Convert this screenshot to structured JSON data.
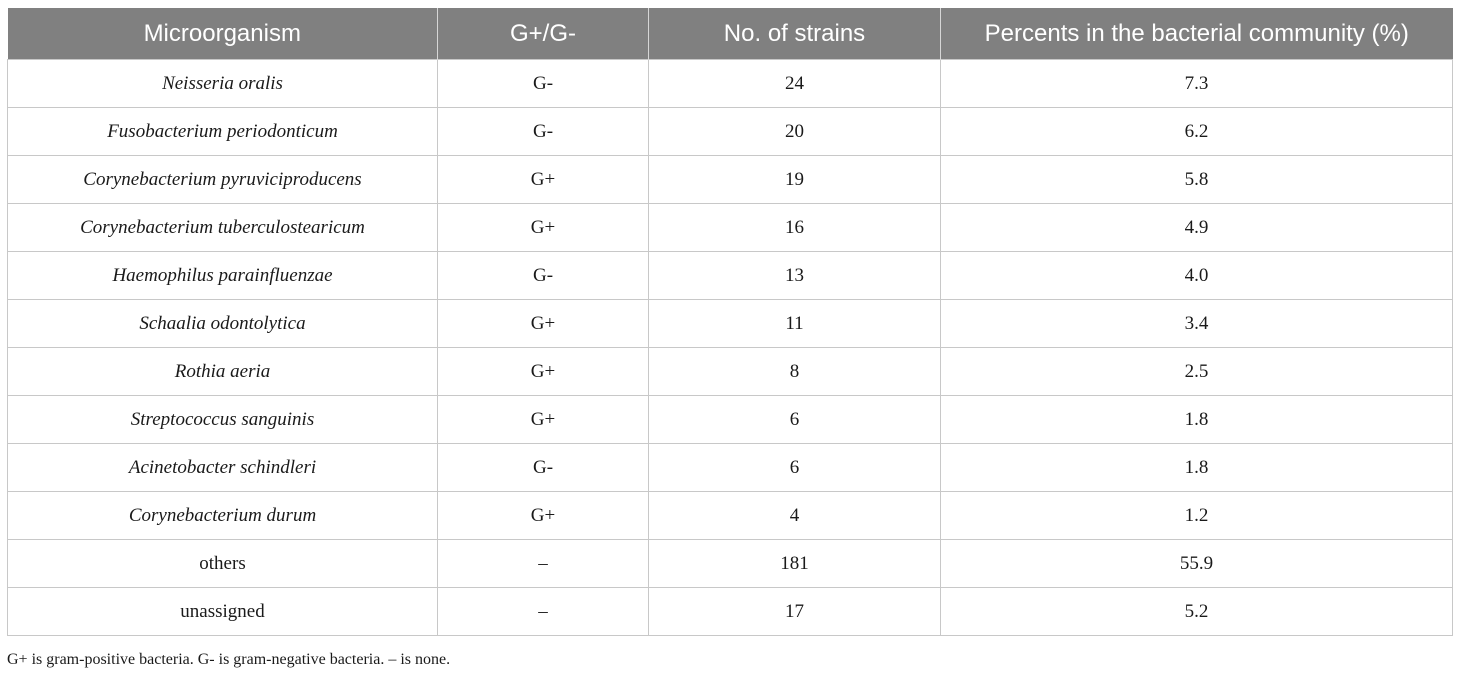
{
  "table": {
    "headers": [
      "Microorganism",
      "G+/G-",
      "No. of strains",
      "Percents in the bacterial community (%)"
    ],
    "rows": [
      {
        "name": "Neisseria oralis",
        "gram": "G-",
        "strains": "24",
        "percent": "7.3",
        "italic": true
      },
      {
        "name": "Fusobacterium periodonticum",
        "gram": "G-",
        "strains": "20",
        "percent": "6.2",
        "italic": true
      },
      {
        "name": "Corynebacterium pyruviciproducens",
        "gram": "G+",
        "strains": "19",
        "percent": "5.8",
        "italic": true
      },
      {
        "name": "Corynebacterium tuberculostearicum",
        "gram": "G+",
        "strains": "16",
        "percent": "4.9",
        "italic": true
      },
      {
        "name": "Haemophilus parainfluenzae",
        "gram": "G-",
        "strains": "13",
        "percent": "4.0",
        "italic": true
      },
      {
        "name": "Schaalia odontolytica",
        "gram": "G+",
        "strains": "11",
        "percent": "3.4",
        "italic": true
      },
      {
        "name": "Rothia aeria",
        "gram": "G+",
        "strains": "8",
        "percent": "2.5",
        "italic": true
      },
      {
        "name": "Streptococcus sanguinis",
        "gram": "G+",
        "strains": "6",
        "percent": "1.8",
        "italic": true
      },
      {
        "name": "Acinetobacter schindleri",
        "gram": "G-",
        "strains": "6",
        "percent": "1.8",
        "italic": true
      },
      {
        "name": "Corynebacterium durum",
        "gram": "G+",
        "strains": "4",
        "percent": "1.2",
        "italic": true
      },
      {
        "name": "others",
        "gram": "–",
        "strains": "181",
        "percent": "55.9",
        "italic": false
      },
      {
        "name": "unassigned",
        "gram": "–",
        "strains": "17",
        "percent": "5.2",
        "italic": false
      }
    ]
  },
  "footnote": "G+ is gram-positive bacteria. G- is gram-negative bacteria. – is none.",
  "colors": {
    "header_bg": "#808080",
    "header_text": "#ffffff",
    "grid": "#c8c8c8"
  }
}
